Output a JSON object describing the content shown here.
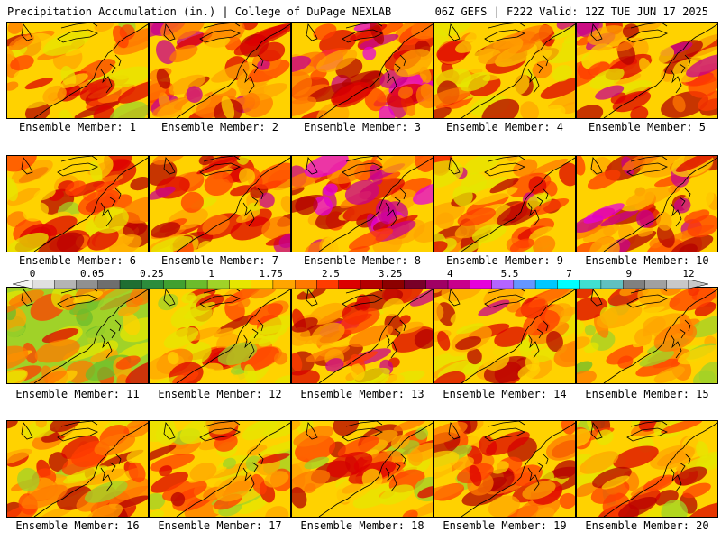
{
  "header": {
    "title": "Precipitation Accumulation (in.) | College of DuPage NEXLAB",
    "run_info": "06Z GEFS | F222 Valid: 12Z TUE JUN 17 2025"
  },
  "members": [
    {
      "label": "Ensemble Member: 1",
      "intensity": 0.45
    },
    {
      "label": "Ensemble Member: 2",
      "intensity": 0.75
    },
    {
      "label": "Ensemble Member: 3",
      "intensity": 0.85
    },
    {
      "label": "Ensemble Member: 4",
      "intensity": 0.55
    },
    {
      "label": "Ensemble Member: 5",
      "intensity": 0.7
    },
    {
      "label": "Ensemble Member: 6",
      "intensity": 0.5
    },
    {
      "label": "Ensemble Member: 7",
      "intensity": 0.55
    },
    {
      "label": "Ensemble Member: 8",
      "intensity": 0.8
    },
    {
      "label": "Ensemble Member: 9",
      "intensity": 0.55
    },
    {
      "label": "Ensemble Member: 10",
      "intensity": 0.8
    },
    {
      "label": "Ensemble Member: 11",
      "intensity": 0.2
    },
    {
      "label": "Ensemble Member: 12",
      "intensity": 0.35
    },
    {
      "label": "Ensemble Member: 13",
      "intensity": 0.65
    },
    {
      "label": "Ensemble Member: 14",
      "intensity": 0.55
    },
    {
      "label": "Ensemble Member: 15",
      "intensity": 0.35
    },
    {
      "label": "Ensemble Member: 16",
      "intensity": 0.5
    },
    {
      "label": "Ensemble Member: 17",
      "intensity": 0.35
    },
    {
      "label": "Ensemble Member: 18",
      "intensity": 0.45
    },
    {
      "label": "Ensemble Member: 19",
      "intensity": 0.45
    },
    {
      "label": "Ensemble Member: 20",
      "intensity": 0.45
    }
  ],
  "colorbar": {
    "labels": [
      "0",
      "0.05",
      "0.25",
      "1",
      "1.75",
      "2.5",
      "3.25",
      "4",
      "5.5",
      "7",
      "9",
      "12"
    ],
    "colors": [
      "#e0e0e0",
      "#b4b4b4",
      "#909090",
      "#6e6e6e",
      "#1e6e32",
      "#2c8c3c",
      "#40a030",
      "#6cbc2c",
      "#a0d228",
      "#e6e600",
      "#ffd200",
      "#ffa500",
      "#ff7800",
      "#ff3c00",
      "#dc0000",
      "#b40000",
      "#8c0000",
      "#780028",
      "#a00064",
      "#c8008c",
      "#e600dc",
      "#b464ff",
      "#6496ff",
      "#00c8ff",
      "#00ffff",
      "#40e0d0",
      "#60c0c0",
      "#808080",
      "#a0a0a0",
      "#c8c8c8"
    ]
  }
}
